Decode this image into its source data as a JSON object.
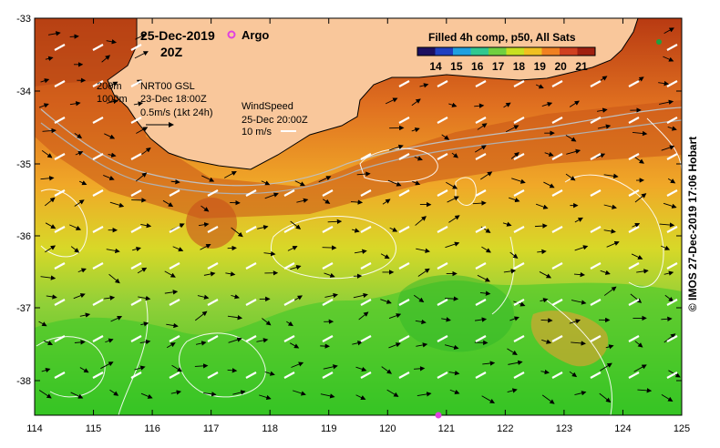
{
  "map": {
    "date": "25-Dec-2019",
    "hour": "20Z",
    "argo_label": "Argo",
    "colorbar_title": "Filled 4h comp, p50, All Sats",
    "colorbar_ticks": [
      "14",
      "15",
      "16",
      "17",
      "18",
      "19",
      "20",
      "21"
    ],
    "colorbar_colors": [
      "#1c1060",
      "#2040c0",
      "#20a0e0",
      "#30c890",
      "#70d040",
      "#c8e020",
      "#f0c020",
      "#f08020",
      "#d04020",
      "#a02010"
    ],
    "depth_labels": [
      "200m",
      "1000m"
    ],
    "current_source": "NRT00 GSL",
    "current_time": "23-Dec 18:00Z",
    "current_scale": "0.5m/s (1kt 24h)",
    "wind_title": "WindSpeed",
    "wind_time": "25-Dec 20:00Z",
    "wind_scale": "10 m/s",
    "credit": "© IMOS 27-Dec-2019 17:06 Hobart",
    "lon_ticks": [
      "114",
      "115",
      "116",
      "117",
      "118",
      "119",
      "120",
      "121",
      "122",
      "123",
      "124",
      "125"
    ],
    "lat_ticks": [
      "-33",
      "-34",
      "-35",
      "-36",
      "-37",
      "-38"
    ],
    "colors": {
      "land": "#f9c79b",
      "argo": "#e040e0",
      "contour": "#ffffff"
    }
  }
}
